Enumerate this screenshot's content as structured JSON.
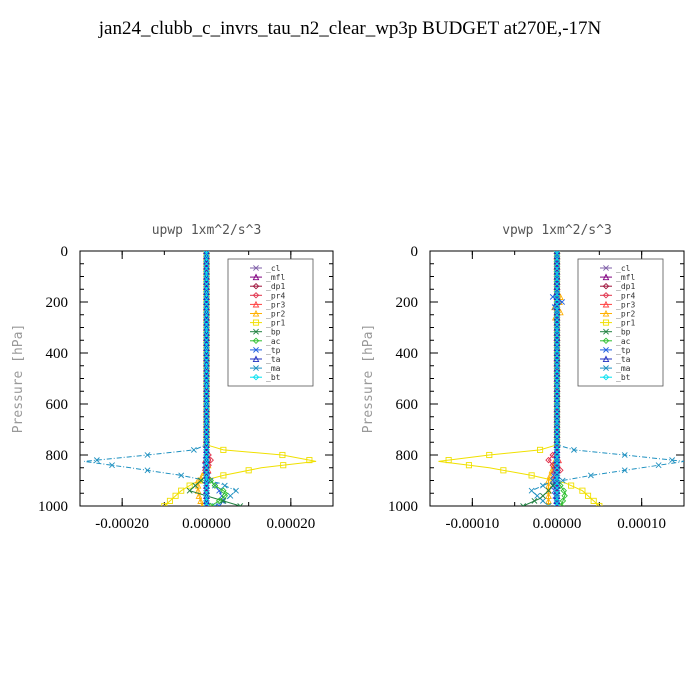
{
  "title": "jan24_clubb_c_invrs_tau_n2_clear_wp3p  BUDGET at270E,-17N",
  "legend_labels": [
    "_cl",
    "_mfl",
    "_dp1",
    "_pr4",
    "_pr3",
    "_pr2",
    "_pr1",
    "_bp",
    "_ac",
    "_tp",
    "_ta",
    "_ma",
    "_bt"
  ],
  "colors": {
    "_cl": "#7f5fa8",
    "_mfl": "#800080",
    "_dp1": "#a0143c",
    "_pr4": "#e0304a",
    "_pr3": "#ff4040",
    "_pr2": "#ffb000",
    "_pr1": "#f0e000",
    "_bp": "#208040",
    "_ac": "#30c030",
    "_tp": "#2060e0",
    "_ta": "#2030c0",
    "_ma": "#1e90c0",
    "_bt": "#00e0f0"
  },
  "chart_data": [
    {
      "type": "line",
      "title": "upwp   1xm^2/s^3",
      "ylabel": "Pressure  [hPa]",
      "xlim": [
        -0.0003,
        0.0003
      ],
      "ylim": [
        1000,
        0
      ],
      "x_ticks": [
        "-0.00020",
        "0.00000",
        "0.00020"
      ],
      "x_tick_values": [
        -0.0002,
        0,
        0.0002
      ],
      "y_ticks": [
        "0",
        "200",
        "400",
        "600",
        "800",
        "1000"
      ],
      "series": [
        {
          "name": "_pr1",
          "p": [
            0,
            760,
            780,
            800,
            825,
            850,
            880,
            910,
            940,
            970,
            1000
          ],
          "x": [
            0,
            0,
            4e-05,
            0.00018,
            0.00026,
            0.00013,
            4e-05,
            -3e-05,
            -6e-05,
            -8e-05,
            -0.0001
          ]
        },
        {
          "name": "_pr2",
          "p": [
            0,
            800,
            850,
            900,
            950,
            1000
          ],
          "x": [
            0,
            0,
            5e-06,
            -2e-05,
            -2e-05,
            -1e-05
          ]
        },
        {
          "name": "_ma",
          "p": [
            0,
            760,
            780,
            800,
            825,
            850,
            880,
            910,
            940,
            970,
            1000
          ],
          "x": [
            0,
            0,
            -3e-05,
            -0.00014,
            -0.00029,
            -0.00018,
            -6e-05,
            3e-05,
            7e-05,
            5e-05,
            2e-05
          ]
        },
        {
          "name": "_tp",
          "p": [
            0,
            800,
            850,
            900,
            940,
            970,
            1000
          ],
          "x": [
            0,
            0,
            -5e-06,
            1e-05,
            3e-05,
            4e-05,
            3e-05
          ]
        },
        {
          "name": "_bp",
          "p": [
            0,
            880,
            910,
            940,
            970,
            1000
          ],
          "x": [
            0,
            0,
            -2e-05,
            -4e-05,
            2e-05,
            8e-05
          ]
        },
        {
          "name": "_ac",
          "p": [
            0,
            880,
            920,
            950,
            980,
            1000
          ],
          "x": [
            0,
            0,
            2e-05,
            5e-05,
            3e-05,
            1e-05
          ]
        },
        {
          "name": "_pr4",
          "p": [
            0,
            780,
            800,
            820,
            840,
            860,
            880,
            900
          ],
          "x": [
            0,
            0,
            5e-06,
            1e-05,
            5e-06,
            -3e-06,
            0,
            0
          ]
        },
        {
          "name": "_pr3",
          "p": [
            0,
            800,
            830,
            860,
            900
          ],
          "x": [
            0,
            0,
            -4e-06,
            4e-06,
            0
          ]
        },
        {
          "name": "_dp1",
          "p": [
            0,
            1000
          ],
          "x": [
            0,
            0
          ]
        },
        {
          "name": "_cl",
          "p": [
            0,
            1000
          ],
          "x": [
            0,
            0
          ]
        },
        {
          "name": "_mfl",
          "p": [
            0,
            1000
          ],
          "x": [
            0,
            0
          ]
        },
        {
          "name": "_ta",
          "p": [
            0,
            1000
          ],
          "x": [
            0,
            0
          ]
        },
        {
          "name": "_bt",
          "p": [
            0,
            1000
          ],
          "x": [
            0,
            0
          ]
        }
      ]
    },
    {
      "type": "line",
      "title": "vpwp   1xm^2/s^3",
      "ylabel": "Pressure  [hPa]",
      "xlim": [
        -0.00015,
        0.00015
      ],
      "ylim": [
        1000,
        0
      ],
      "x_ticks": [
        "-0.00010",
        "0.00000",
        "0.00010"
      ],
      "x_tick_values": [
        -0.0001,
        0,
        0.0001
      ],
      "y_ticks": [
        "0",
        "200",
        "400",
        "600",
        "800",
        "1000"
      ],
      "series": [
        {
          "name": "_pr1",
          "p": [
            0,
            760,
            780,
            800,
            825,
            850,
            880,
            910,
            940,
            970,
            1000
          ],
          "x": [
            0,
            0,
            -2e-05,
            -8e-05,
            -0.00014,
            -8e-05,
            -3e-05,
            1e-05,
            3e-05,
            4e-05,
            5e-05
          ]
        },
        {
          "name": "_pr2",
          "p": [
            0,
            160,
            180,
            200,
            220,
            240,
            260,
            280,
            800,
            900,
            1000
          ],
          "x": [
            0,
            0,
            4e-06,
            3e-06,
            -3e-06,
            4e-06,
            -2e-06,
            0,
            0,
            -1e-05,
            -1e-05
          ]
        },
        {
          "name": "_ma",
          "p": [
            0,
            760,
            780,
            800,
            825,
            850,
            880,
            910,
            940,
            970,
            1000
          ],
          "x": [
            0,
            0,
            2e-05,
            8e-05,
            0.00015,
            0.0001,
            4e-05,
            -1e-05,
            -3e-05,
            -2e-05,
            -1e-05
          ]
        },
        {
          "name": "_tp",
          "p": [
            0,
            160,
            180,
            200,
            215,
            230,
            800,
            900,
            1000
          ],
          "x": [
            0,
            0,
            -5e-06,
            6e-06,
            -4e-06,
            0,
            0,
            -5e-06,
            0
          ]
        },
        {
          "name": "_bp",
          "p": [
            0,
            900,
            940,
            970,
            1000
          ],
          "x": [
            0,
            0,
            -1e-05,
            -2e-05,
            -4e-05
          ]
        },
        {
          "name": "_ac",
          "p": [
            0,
            900,
            950,
            1000
          ],
          "x": [
            0,
            0,
            1e-05,
            5e-06
          ]
        },
        {
          "name": "_pr4",
          "p": [
            0,
            780,
            800,
            820,
            840,
            860,
            880,
            900
          ],
          "x": [
            0,
            0,
            -5e-06,
            -1e-05,
            -5e-06,
            4e-06,
            0,
            0
          ]
        },
        {
          "name": "_pr3",
          "p": [
            0,
            800,
            830,
            860,
            900
          ],
          "x": [
            0,
            0,
            3e-06,
            -3e-06,
            0
          ]
        },
        {
          "name": "_dp1",
          "p": [
            0,
            1000
          ],
          "x": [
            0,
            0
          ]
        },
        {
          "name": "_cl",
          "p": [
            0,
            1000
          ],
          "x": [
            0,
            0
          ]
        },
        {
          "name": "_mfl",
          "p": [
            0,
            1000
          ],
          "x": [
            0,
            0
          ]
        },
        {
          "name": "_ta",
          "p": [
            0,
            1000
          ],
          "x": [
            0,
            0
          ]
        },
        {
          "name": "_bt",
          "p": [
            0,
            1000
          ],
          "x": [
            0,
            0
          ]
        }
      ]
    }
  ]
}
